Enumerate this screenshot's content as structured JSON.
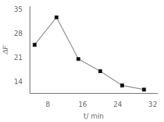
{
  "chart_data": {
    "type": "line",
    "x": [
      5,
      10,
      15,
      20,
      25,
      30
    ],
    "values": [
      24.9,
      32.8,
      20.8,
      17.3,
      13.2,
      12.0
    ],
    "xlabel": "t/ min",
    "ylabel": "ΔF",
    "xlim": [
      4,
      33
    ],
    "ylim": [
      11,
      36
    ],
    "xticks": [
      8,
      16,
      24,
      32
    ],
    "yticks": [
      14,
      21,
      28,
      35
    ],
    "color": "#888888",
    "colors": [
      "#111111",
      "#111111",
      "#111111",
      "#111111",
      "#111111",
      "#111111"
    ],
    "marker": "square",
    "grid": false
  }
}
